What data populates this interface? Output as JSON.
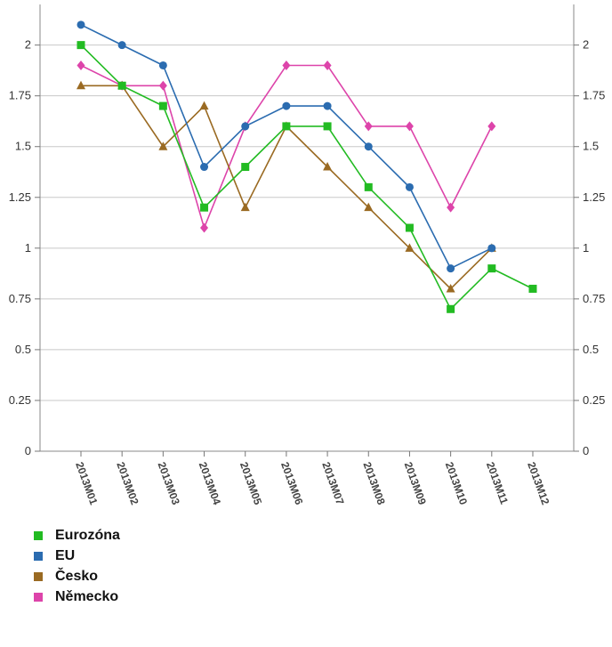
{
  "chart_data": {
    "type": "line",
    "categories": [
      "2013M01",
      "2013M02",
      "2013M03",
      "2013M04",
      "2013M05",
      "2013M06",
      "2013M07",
      "2013M08",
      "2013M09",
      "2013M10",
      "2013M11",
      "2013M12"
    ],
    "series": [
      {
        "name": "Eurozóna",
        "color": "#22bb22",
        "marker": "square",
        "values": [
          2.0,
          1.8,
          1.7,
          1.2,
          1.4,
          1.6,
          1.6,
          1.3,
          1.1,
          0.7,
          0.9,
          0.8
        ]
      },
      {
        "name": "EU",
        "color": "#2b6cb0",
        "marker": "circle",
        "values": [
          2.1,
          2.0,
          1.9,
          1.4,
          1.6,
          1.7,
          1.7,
          1.5,
          1.3,
          0.9,
          1.0,
          null
        ]
      },
      {
        "name": "Česko",
        "color": "#9a6a22",
        "marker": "triangle",
        "values": [
          1.8,
          1.8,
          1.5,
          1.7,
          1.2,
          1.6,
          1.4,
          1.2,
          1.0,
          0.8,
          1.0,
          null
        ]
      },
      {
        "name": "Německo",
        "color": "#dd44aa",
        "marker": "diamond",
        "values": [
          1.9,
          1.8,
          1.8,
          1.1,
          1.6,
          1.9,
          1.9,
          1.6,
          1.6,
          1.2,
          1.6,
          null
        ]
      }
    ],
    "yticks": [
      "0",
      "0.25",
      "0.5",
      "0.75",
      "1",
      "1.25",
      "1.5",
      "1.75",
      "2"
    ],
    "ylim": [
      0,
      2.2
    ],
    "grid": true,
    "legend_position": "bottom-left"
  }
}
